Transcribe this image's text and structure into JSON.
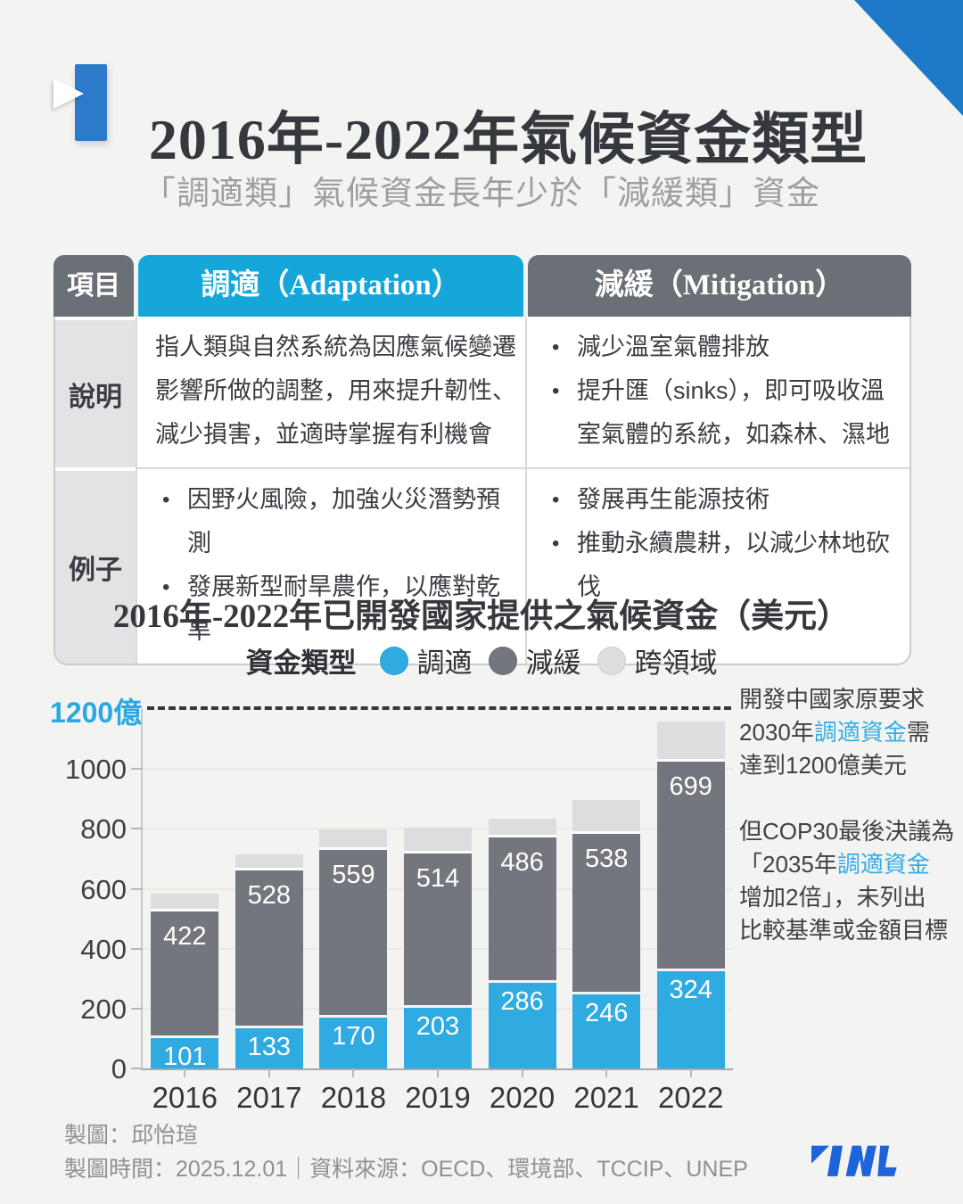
{
  "header": {
    "title": "2016年-2022年氣候資金類型",
    "subtitle": "「調適類」氣候資金長年少於「減緩類」資金"
  },
  "table": {
    "header": {
      "item": "項目",
      "adaptation": "調適（Adaptation）",
      "mitigation": "減緩（Mitigation）"
    },
    "rows": [
      {
        "label": "說明",
        "adaptation_text": "指人類與自然系統為因應氣候變遷影響所做的調整，用來提升韌性、減少損害，並適時掌握有利機會",
        "mitigation_items": [
          "減少溫室氣體排放",
          "提升匯（sinks），即可吸收溫室氣體的系統，如森林、濕地"
        ]
      },
      {
        "label": "例子",
        "adaptation_items": [
          "因野火風險，加強火災潛勢預測",
          "發展新型耐旱農作，以應對乾旱"
        ],
        "mitigation_items": [
          "發展再生能源技術",
          "推動永續農耕，以減少林地砍伐"
        ]
      }
    ]
  },
  "chart_data": {
    "type": "stacked-bar",
    "title": "2016年-2022年已開發國家提供之氣候資金（美元）",
    "legend_title": "資金類型",
    "legend_position": "top-center",
    "unit": "億美元",
    "categories": [
      "2016",
      "2017",
      "2018",
      "2019",
      "2020",
      "2021",
      "2022"
    ],
    "series": [
      {
        "key": "adaptation",
        "name": "調適",
        "color": "#2fabe2",
        "show_labels": true,
        "values": [
          101,
          133,
          170,
          203,
          286,
          246,
          324
        ]
      },
      {
        "key": "mitigation",
        "name": "減緩",
        "color": "#73767d",
        "show_labels": true,
        "values": [
          422,
          528,
          559,
          514,
          486,
          538,
          699
        ]
      },
      {
        "key": "cross_cutting",
        "name": "跨領域",
        "color": "#dcddde",
        "show_labels": false,
        "values": [
          62,
          55,
          70,
          87,
          61,
          112,
          136
        ],
        "note": "values estimated from bar heights (not labeled in chart)"
      }
    ],
    "totals_estimated": [
      585,
      716,
      799,
      804,
      833,
      896,
      1159
    ],
    "ylim": [
      0,
      1200
    ],
    "yticks": [
      0,
      200,
      400,
      600,
      800,
      1000
    ],
    "grid": true,
    "target_line": {
      "value": 1200,
      "label": "1200億",
      "style": "dashed"
    }
  },
  "annotations": [
    {
      "lines": [
        [
          {
            "t": "開發中國家原要求"
          }
        ],
        [
          {
            "t": "2030年"
          },
          {
            "t": "調適資金",
            "hl": true
          },
          {
            "t": "需"
          }
        ],
        [
          {
            "t": "達到1200億美元"
          }
        ]
      ]
    },
    {
      "lines": [
        [
          {
            "t": "但COP30最後決議為"
          }
        ],
        [
          {
            "t": "「2035年"
          },
          {
            "t": "調適資金",
            "hl": true
          }
        ],
        [
          {
            "t": "增加2倍」，未列出"
          }
        ],
        [
          {
            "t": "比較基準或金額目標"
          }
        ]
      ]
    }
  ],
  "footer": {
    "credit": "製圖：邱怡瑄",
    "meta": "製圖時間：2025.12.01｜資料來源：OECD、環境部、TCCIP、UNEP",
    "logo": "TNL"
  },
  "colors": {
    "accent_cyan": "#2fabe2",
    "header_cyan": "#16a7da",
    "dark_gray": "#6b6f76",
    "light_gray": "#dcddde",
    "corner_blue": "#1e78c8",
    "logo_blue": "#1d64da",
    "background": "#f3f4f1"
  }
}
